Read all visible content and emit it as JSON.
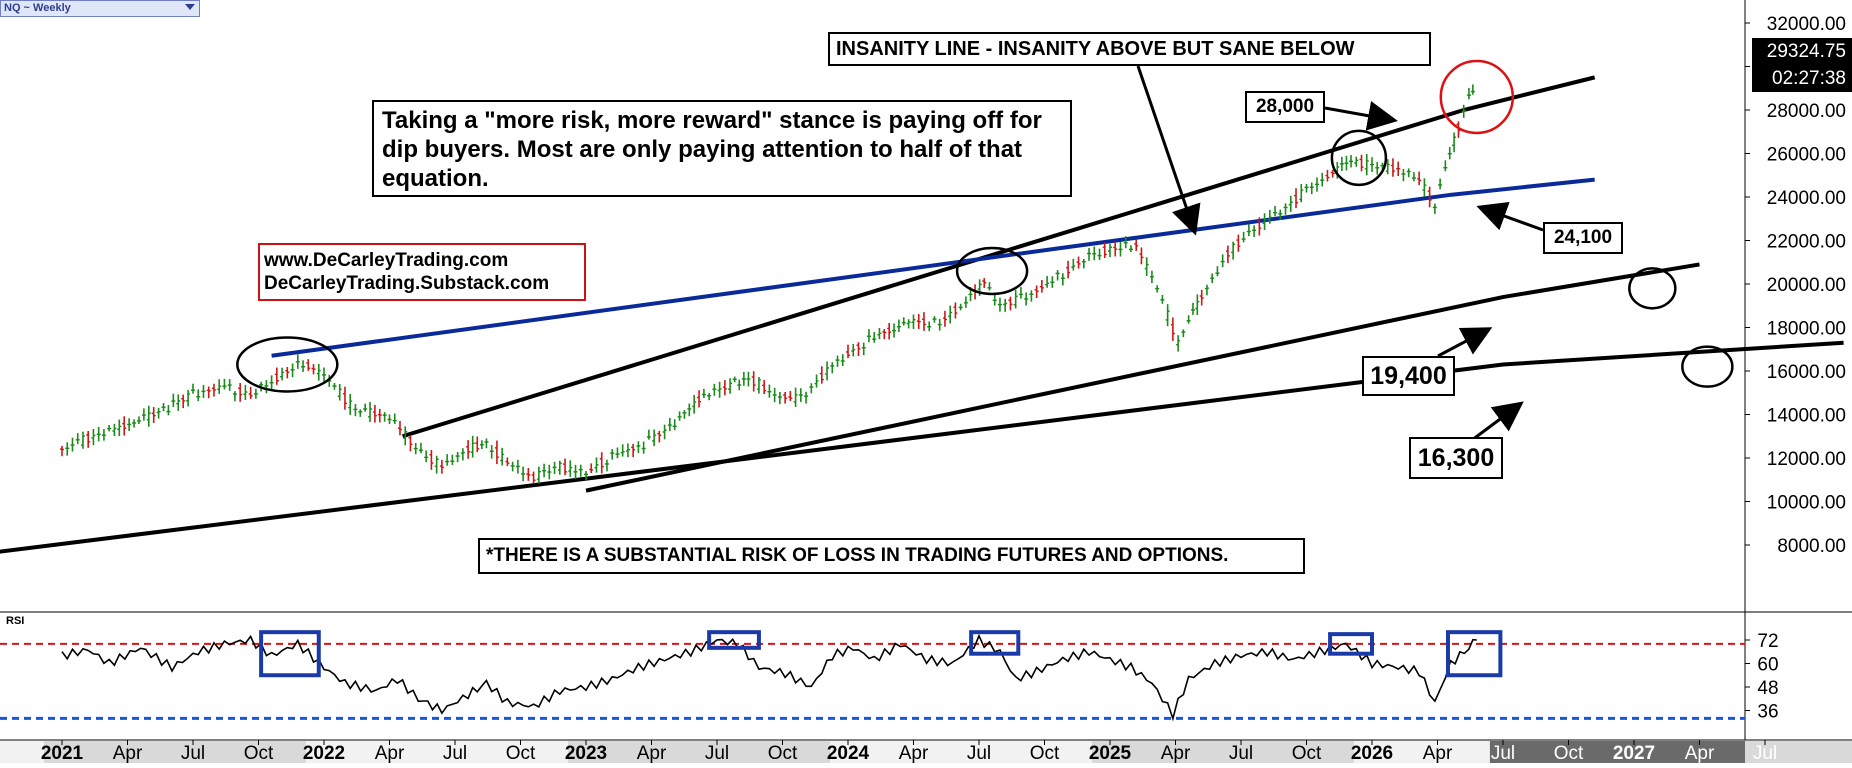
{
  "window": {
    "symbol_selector": "NQ ~ Weekly"
  },
  "price_readout": {
    "last_price": "29324.75",
    "countdown": "02:27:38"
  },
  "annotations": {
    "insanity_title": "INSANITY LINE - INSANITY ABOVE BUT SANE BELOW",
    "commentary": "Taking a \"more risk, more reward\" stance is paying off for dip buyers. Most are only paying attention to half of that equation.",
    "website_1": "www.DeCarleyTrading.com",
    "website_2": "DeCarleyTrading.Substack.com",
    "disclaimer": "*THERE IS A SUBSTANTIAL RISK OF LOSS IN TRADING FUTURES AND OPTIONS.",
    "level_28000": "28,000",
    "level_24100": "24,100",
    "level_19400": "19,400",
    "level_16300": "16,300"
  },
  "rsi_panel": {
    "label": "RSI"
  },
  "colors": {
    "up_bar": "#1a8a1a",
    "down_bar": "#d01515",
    "blue_trendline": "#0a2a9a",
    "insanity_line": "#000000",
    "overbought_line": "#dd1111",
    "oversold_line": "#1a55dd",
    "highlight_box": "#1a3aa8",
    "highlight_circle_red": "#dd1111"
  },
  "chart_data": [
    {
      "type": "line",
      "title": "NQ ~ Weekly",
      "x_axis_labels": [
        "2021",
        "Apr",
        "Jul",
        "Oct",
        "2022",
        "Apr",
        "Jul",
        "Oct",
        "2023",
        "Apr",
        "Jul",
        "Oct",
        "2024",
        "Apr",
        "Jul",
        "Oct",
        "2025",
        "Apr",
        "Jul",
        "Oct",
        "2026",
        "Apr",
        "Jul",
        "Oct",
        "2027",
        "Apr",
        "Jul"
      ],
      "x_axis_years_bold": [
        "2021",
        "2022",
        "2023",
        "2024",
        "2025",
        "2026",
        "2027"
      ],
      "y_axis_ticks": [
        "32000.00",
        "30000.00",
        "28000.00",
        "26000.00",
        "24000.00",
        "22000.00",
        "20000.00",
        "18000.00",
        "16000.00",
        "14000.00",
        "12000.00",
        "10000.00",
        "8000.00"
      ],
      "ylim": [
        6000,
        33000
      ],
      "last_price": 29324.75,
      "series": [
        {
          "values": [
            [
              2021.0,
              12400
            ],
            [
              2021.1,
              12900
            ],
            [
              2021.2,
              13300
            ],
            [
              2021.35,
              14000
            ],
            [
              2021.5,
              14900
            ],
            [
              2021.62,
              15300
            ],
            [
              2021.72,
              14900
            ],
            [
              2021.82,
              15700
            ],
            [
              2021.92,
              16400
            ],
            [
              2022.0,
              15800
            ],
            [
              2022.12,
              14200
            ],
            [
              2022.25,
              13900
            ],
            [
              2022.35,
              12500
            ],
            [
              2022.45,
              11600
            ],
            [
              2022.55,
              12400
            ],
            [
              2022.62,
              12700
            ],
            [
              2022.7,
              11800
            ],
            [
              2022.8,
              11100
            ],
            [
              2022.9,
              11600
            ],
            [
              2023.0,
              11300
            ],
            [
              2023.1,
              12100
            ],
            [
              2023.22,
              12600
            ],
            [
              2023.32,
              13400
            ],
            [
              2023.45,
              14900
            ],
            [
              2023.55,
              15300
            ],
            [
              2023.62,
              15700
            ],
            [
              2023.72,
              14900
            ],
            [
              2023.82,
              14700
            ],
            [
              2023.92,
              16000
            ],
            [
              2024.0,
              16800
            ],
            [
              2024.12,
              17700
            ],
            [
              2024.25,
              18300
            ],
            [
              2024.35,
              18200
            ],
            [
              2024.45,
              19200
            ],
            [
              2024.52,
              20100
            ],
            [
              2024.58,
              19000
            ],
            [
              2024.68,
              19400
            ],
            [
              2024.8,
              20300
            ],
            [
              2024.92,
              21300
            ],
            [
              2025.0,
              21600
            ],
            [
              2025.1,
              21800
            ],
            [
              2025.18,
              19800
            ],
            [
              2025.26,
              17300
            ],
            [
              2025.3,
              18300
            ],
            [
              2025.35,
              19400
            ],
            [
              2025.45,
              21400
            ],
            [
              2025.55,
              22600
            ],
            [
              2025.65,
              23300
            ],
            [
              2025.75,
              24300
            ],
            [
              2025.85,
              25100
            ],
            [
              2025.92,
              25700
            ],
            [
              2026.0,
              25400
            ],
            [
              2026.1,
              25300
            ],
            [
              2026.18,
              24800
            ],
            [
              2026.24,
              23700
            ],
            [
              2026.28,
              25300
            ],
            [
              2026.33,
              27200
            ],
            [
              2026.37,
              28700
            ],
            [
              2026.4,
              29324.75
            ]
          ],
          "color": "#1a8a1a"
        }
      ],
      "trendlines": [
        {
          "label": "28,000",
          "color": "#000000",
          "points": [
            [
              2022.3,
              13000
            ],
            [
              2026.35,
              28000
            ],
            [
              2026.85,
              29500
            ]
          ]
        },
        {
          "label": "24,100",
          "color": "#0a2a9a",
          "points": [
            [
              2021.8,
              16700
            ],
            [
              2026.3,
              24100
            ],
            [
              2026.85,
              24800
            ]
          ]
        },
        {
          "label": "19,400",
          "color": "#000000",
          "points": [
            [
              2023.0,
              10500
            ],
            [
              2026.5,
              19400
            ],
            [
              2027.25,
              20900
            ]
          ]
        },
        {
          "label": "16,300",
          "color": "#000000",
          "points": [
            [
              2020.7,
              7600
            ],
            [
              2026.5,
              16300
            ],
            [
              2027.8,
              17300
            ]
          ]
        }
      ]
    },
    {
      "type": "line",
      "title": "RSI",
      "y_axis_ticks": [
        "72",
        "60",
        "48",
        "36"
      ],
      "ylim": [
        30,
        78
      ],
      "series": [
        {
          "values": [
            [
              2021.0,
              64
            ],
            [
              2021.1,
              67
            ],
            [
              2021.18,
              60
            ],
            [
              2021.3,
              68
            ],
            [
              2021.42,
              58
            ],
            [
              2021.52,
              66
            ],
            [
              2021.62,
              70
            ],
            [
              2021.72,
              72
            ],
            [
              2021.8,
              64
            ],
            [
              2021.9,
              70
            ],
            [
              2022.0,
              58
            ],
            [
              2022.08,
              50
            ],
            [
              2022.2,
              46
            ],
            [
              2022.28,
              52
            ],
            [
              2022.36,
              42
            ],
            [
              2022.45,
              36
            ],
            [
              2022.55,
              44
            ],
            [
              2022.62,
              50
            ],
            [
              2022.7,
              40
            ],
            [
              2022.8,
              38
            ],
            [
              2022.9,
              46
            ],
            [
              2023.0,
              48
            ],
            [
              2023.1,
              52
            ],
            [
              2023.2,
              58
            ],
            [
              2023.3,
              62
            ],
            [
              2023.4,
              66
            ],
            [
              2023.5,
              72
            ],
            [
              2023.58,
              70
            ],
            [
              2023.66,
              58
            ],
            [
              2023.76,
              55
            ],
            [
              2023.86,
              48
            ],
            [
              2023.94,
              64
            ],
            [
              2024.02,
              68
            ],
            [
              2024.1,
              62
            ],
            [
              2024.2,
              70
            ],
            [
              2024.3,
              62
            ],
            [
              2024.4,
              60
            ],
            [
              2024.5,
              72
            ],
            [
              2024.58,
              66
            ],
            [
              2024.64,
              52
            ],
            [
              2024.72,
              56
            ],
            [
              2024.82,
              62
            ],
            [
              2024.92,
              66
            ],
            [
              2025.0,
              62
            ],
            [
              2025.08,
              58
            ],
            [
              2025.16,
              50
            ],
            [
              2025.24,
              34
            ],
            [
              2025.3,
              52
            ],
            [
              2025.4,
              60
            ],
            [
              2025.5,
              64
            ],
            [
              2025.6,
              66
            ],
            [
              2025.7,
              62
            ],
            [
              2025.8,
              66
            ],
            [
              2025.9,
              70
            ],
            [
              2026.0,
              60
            ],
            [
              2026.1,
              58
            ],
            [
              2026.18,
              56
            ],
            [
              2026.24,
              40
            ],
            [
              2026.3,
              60
            ],
            [
              2026.37,
              68
            ],
            [
              2026.4,
              72
            ]
          ],
          "color": "#000000"
        }
      ],
      "overbought": 70,
      "oversold": 32
    }
  ]
}
